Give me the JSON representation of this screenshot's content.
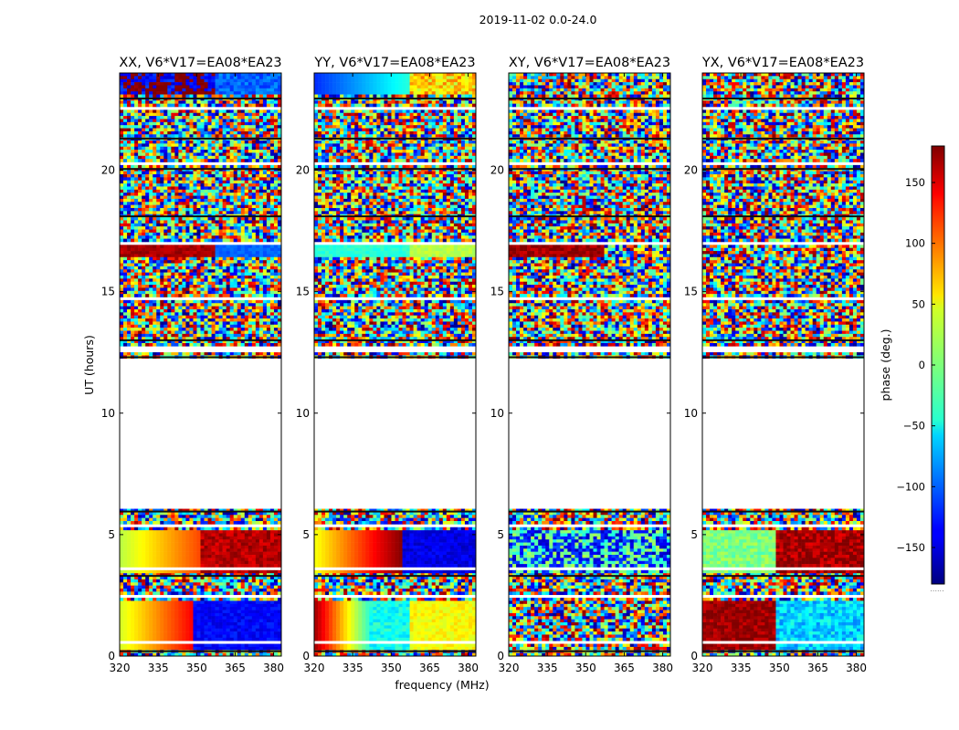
{
  "figure_title": "2019-11-02 0.0-24.0",
  "chart_data": {
    "type": "heatmap",
    "title": "2019-11-02 0.0-24.0",
    "xlabel": "frequency (MHz)",
    "ylabel": "UT (hours)",
    "xlim": [
      320,
      383
    ],
    "ylim": [
      0,
      24
    ],
    "xticks": [
      320,
      335,
      350,
      365,
      380
    ],
    "yticks": [
      0,
      5,
      10,
      15,
      20
    ],
    "gap_hours": [
      6.1,
      12.2
    ],
    "colorbar": {
      "label": "phase (deg.)",
      "range": [
        -180,
        180
      ],
      "ticks": [
        150,
        100,
        50,
        0,
        -50,
        -100,
        -150
      ],
      "tick_labels": [
        "150",
        "100",
        "50",
        "0",
        "−50",
        "−100",
        "−150"
      ],
      "colormap": "jet",
      "below_mark": "......"
    },
    "panels": [
      {
        "title": "XX, V6*V17=EA08*EA23",
        "pol": "XX"
      },
      {
        "title": "YY, V6*V17=EA08*EA23",
        "pol": "YY"
      },
      {
        "title": "XY, V6*V17=EA08*EA23",
        "pol": "XY"
      },
      {
        "title": "YX, V6*V17=EA08*EA23",
        "pol": "YX"
      }
    ]
  }
}
